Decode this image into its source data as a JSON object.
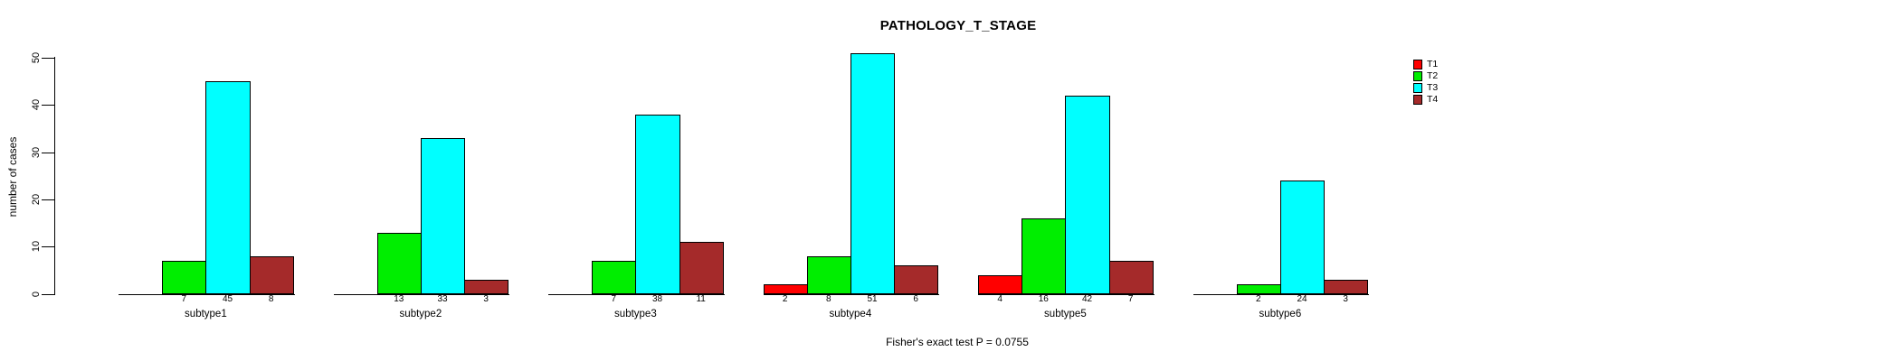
{
  "chart_data": {
    "type": "bar",
    "title": "PATHOLOGY_T_STAGE",
    "xlabel": "",
    "ylabel": "number of cases",
    "ylim": [
      0,
      50
    ],
    "yticks": [
      0,
      10,
      20,
      30,
      40,
      50
    ],
    "grid": false,
    "legend_position": "top-right",
    "categories": [
      "subtype1",
      "subtype2",
      "subtype3",
      "subtype4",
      "subtype5",
      "subtype6"
    ],
    "series": [
      {
        "name": "T1",
        "color": "#FF0000",
        "values": [
          0,
          0,
          0,
          2,
          4,
          0
        ]
      },
      {
        "name": "T2",
        "color": "#00EE00",
        "values": [
          7,
          13,
          7,
          8,
          16,
          2
        ]
      },
      {
        "name": "T3",
        "color": "#00FFFF",
        "values": [
          45,
          33,
          38,
          51,
          42,
          24
        ]
      },
      {
        "name": "T4",
        "color": "#A52A2A",
        "values": [
          8,
          3,
          11,
          6,
          7,
          3
        ]
      }
    ],
    "value_labels_shown_for_zero": false,
    "annotation": "Fisher's exact test P = 0.0755",
    "colors": {
      "background": "#FFFFFF",
      "axis": "#000000",
      "text": "#000000"
    }
  }
}
